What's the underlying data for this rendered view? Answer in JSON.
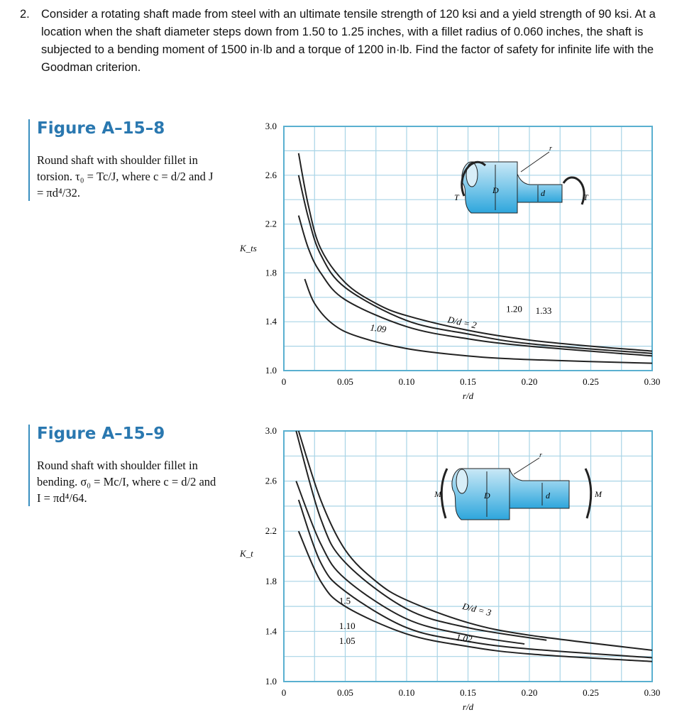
{
  "problem": {
    "number": "2.",
    "text": "Consider a rotating shaft made from steel with an ultimate tensile strength of 120 ksi and a yield strength of 90 ksi.  At a location when the shaft diameter steps down from 1.50 to 1.25 inches, with a fillet radius of 0.060 inches, the shaft is subjected to a bending moment of 1500 in·lb and a torque of 1200 in·lb.  Find the factor of safety for infinite life with the Goodman criterion."
  },
  "figures": [
    {
      "title": "Figure A–15–8",
      "caption": "Round shaft with shoulder fillet in torsion. τ₀ = Tc/J, where c = d/2 and J = πd⁴/32.",
      "diagram": {
        "load_left": "T",
        "load_right": "T",
        "big": "D",
        "small": "d",
        "radius": "r"
      }
    },
    {
      "title": "Figure A–15–9",
      "caption": "Round shaft with shoulder fillet in bending. σ₀ = Mc/I, where c = d/2 and I = πd⁴/64.",
      "diagram": {
        "load_left": "M",
        "load_right": "M",
        "big": "D",
        "small": "d",
        "radius": "r"
      }
    }
  ],
  "colors": {
    "grid": "#a8d4e6",
    "frame": "#5ab0d0",
    "shaft": "#4fb3df",
    "title": "#2a78b0"
  },
  "chart_data": [
    {
      "type": "line",
      "ylabel": "K_ts",
      "xlabel": "r/d",
      "xlim": [
        0,
        0.3
      ],
      "ylim": [
        1.0,
        3.0
      ],
      "grid": true,
      "xticks": [
        "0",
        "0.05",
        "0.10",
        "0.15",
        "0.20",
        "0.25",
        "0.30"
      ],
      "yticks": [
        "3.0",
        "2.6",
        "2.2",
        "1.8",
        "1.4",
        "1.0"
      ],
      "series": [
        {
          "name": "D/d = 2",
          "points": [
            [
              0.012,
              2.78
            ],
            [
              0.02,
              2.35
            ],
            [
              0.03,
              2.0
            ],
            [
              0.05,
              1.72
            ],
            [
              0.075,
              1.55
            ],
            [
              0.1,
              1.45
            ],
            [
              0.15,
              1.33
            ],
            [
              0.2,
              1.25
            ],
            [
              0.25,
              1.2
            ],
            [
              0.3,
              1.16
            ]
          ]
        },
        {
          "name": "1.33",
          "points": [
            [
              0.012,
              2.6
            ],
            [
              0.02,
              2.25
            ],
            [
              0.03,
              1.95
            ],
            [
              0.05,
              1.68
            ],
            [
              0.1,
              1.41
            ],
            [
              0.15,
              1.3
            ],
            [
              0.2,
              1.22
            ],
            [
              0.3,
              1.14
            ]
          ]
        },
        {
          "name": "1.20",
          "points": [
            [
              0.012,
              2.27
            ],
            [
              0.02,
              2.0
            ],
            [
              0.03,
              1.8
            ],
            [
              0.05,
              1.58
            ],
            [
              0.1,
              1.36
            ],
            [
              0.15,
              1.26
            ],
            [
              0.2,
              1.2
            ],
            [
              0.3,
              1.12
            ]
          ]
        },
        {
          "name": "1.09",
          "points": [
            [
              0.017,
              1.75
            ],
            [
              0.025,
              1.55
            ],
            [
              0.04,
              1.38
            ],
            [
              0.06,
              1.28
            ],
            [
              0.1,
              1.18
            ],
            [
              0.15,
              1.12
            ],
            [
              0.2,
              1.09
            ],
            [
              0.3,
              1.06
            ]
          ]
        }
      ]
    },
    {
      "type": "line",
      "ylabel": "K_t",
      "xlabel": "r/d",
      "xlim": [
        0,
        0.3
      ],
      "ylim": [
        1.0,
        3.0
      ],
      "grid": true,
      "xticks": [
        "0",
        "0.05",
        "0.10",
        "0.15",
        "0.20",
        "0.25",
        "0.30"
      ],
      "yticks": [
        "3.0",
        "2.6",
        "2.2",
        "1.8",
        "1.4",
        "1.0"
      ],
      "series": [
        {
          "name": "D/d = 3",
          "points": [
            [
              0.012,
              3.0
            ],
            [
              0.03,
              2.45
            ],
            [
              0.05,
              2.05
            ],
            [
              0.075,
              1.8
            ],
            [
              0.1,
              1.65
            ],
            [
              0.15,
              1.47
            ],
            [
              0.2,
              1.37
            ],
            [
              0.3,
              1.25
            ]
          ]
        },
        {
          "name": "1.5",
          "points": [
            [
              0.01,
              3.0
            ],
            [
              0.03,
              2.3
            ],
            [
              0.05,
              1.95
            ],
            [
              0.1,
              1.58
            ],
            [
              0.15,
              1.43
            ],
            [
              0.214,
              1.33
            ]
          ]
        },
        {
          "name": "1.10",
          "points": [
            [
              0.01,
              2.6
            ],
            [
              0.03,
              2.1
            ],
            [
              0.05,
              1.82
            ],
            [
              0.1,
              1.5
            ],
            [
              0.15,
              1.37
            ],
            [
              0.196,
              1.3
            ]
          ]
        },
        {
          "name": "1.05",
          "points": [
            [
              0.012,
              2.45
            ],
            [
              0.03,
              1.95
            ],
            [
              0.05,
              1.72
            ],
            [
              0.1,
              1.43
            ],
            [
              0.15,
              1.32
            ],
            [
              0.2,
              1.26
            ],
            [
              0.3,
              1.19
            ]
          ]
        },
        {
          "name": "1.02",
          "points": [
            [
              0.012,
              2.2
            ],
            [
              0.03,
              1.8
            ],
            [
              0.05,
              1.6
            ],
            [
              0.1,
              1.38
            ],
            [
              0.15,
              1.28
            ],
            [
              0.2,
              1.22
            ],
            [
              0.3,
              1.16
            ]
          ]
        }
      ]
    }
  ]
}
